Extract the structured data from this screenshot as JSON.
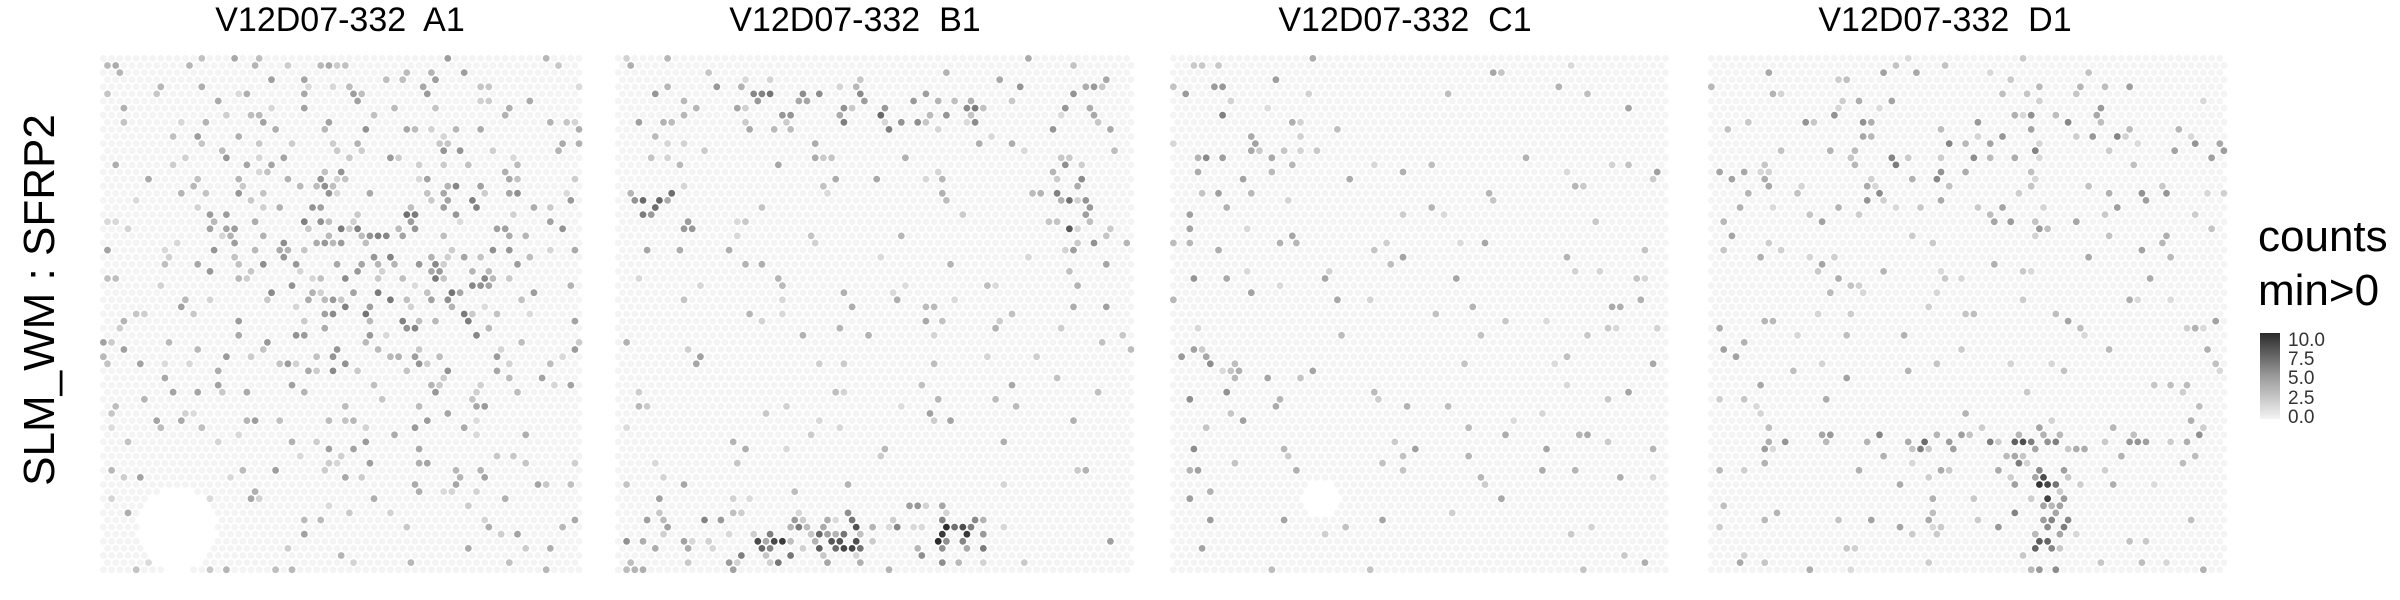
{
  "chart_data": {
    "type": "heatmap",
    "row_label": "SLM_WM : SFRP2",
    "panels": [
      {
        "title": "V12D07-332  A1",
        "cold_regions": [
          {
            "center": [
              0.16,
              0.91
            ],
            "radius": 0.08
          }
        ],
        "hotspots": [
          {
            "center": [
              0.6,
              0.4
            ],
            "spread": [
              0.3,
              0.25
            ],
            "weight": 0.4
          }
        ],
        "background_density": 0.08
      },
      {
        "title": "V12D07-332  B1",
        "hotspots": [
          {
            "center": [
              0.45,
              0.1
            ],
            "spread": [
              0.35,
              0.05
            ],
            "weight": 0.5
          },
          {
            "center": [
              0.08,
              0.25
            ],
            "spread": [
              0.06,
              0.08
            ],
            "weight": 0.7
          },
          {
            "center": [
              0.88,
              0.3
            ],
            "spread": [
              0.04,
              0.15
            ],
            "weight": 0.6
          },
          {
            "center": [
              0.4,
              0.93
            ],
            "spread": [
              0.3,
              0.05
            ],
            "weight": 0.8
          },
          {
            "center": [
              0.65,
              0.92
            ],
            "spread": [
              0.05,
              0.02
            ],
            "weight": 1.0
          }
        ],
        "background_density": 0.04
      },
      {
        "title": "V12D07-332  C1",
        "cold_regions": [
          {
            "center": [
              0.3,
              0.85
            ],
            "radius": 0.04
          }
        ],
        "hotspots": [
          {
            "center": [
              0.1,
              0.2
            ],
            "spread": [
              0.12,
              0.15
            ],
            "weight": 0.3
          },
          {
            "center": [
              0.08,
              0.65
            ],
            "spread": [
              0.05,
              0.2
            ],
            "weight": 0.3
          }
        ],
        "background_density": 0.03
      },
      {
        "title": "V12D07-332  D1",
        "hotspots": [
          {
            "center": [
              0.55,
              0.2
            ],
            "spread": [
              0.45,
              0.1
            ],
            "weight": 0.35
          },
          {
            "center": [
              0.6,
              0.74
            ],
            "spread": [
              0.4,
              0.02
            ],
            "weight": 0.5
          },
          {
            "center": [
              0.64,
              0.85
            ],
            "spread": [
              0.05,
              0.12
            ],
            "weight": 0.9
          }
        ],
        "background_density": 0.05
      }
    ],
    "legend": {
      "title_line1": "counts",
      "title_line2": "min>0",
      "ticks": [
        "10.0",
        "7.5",
        "5.0",
        "2.5",
        "0.0"
      ],
      "range": [
        0,
        10
      ],
      "color_low": "#f4f4f4",
      "color_high": "#2b2b2b"
    }
  }
}
